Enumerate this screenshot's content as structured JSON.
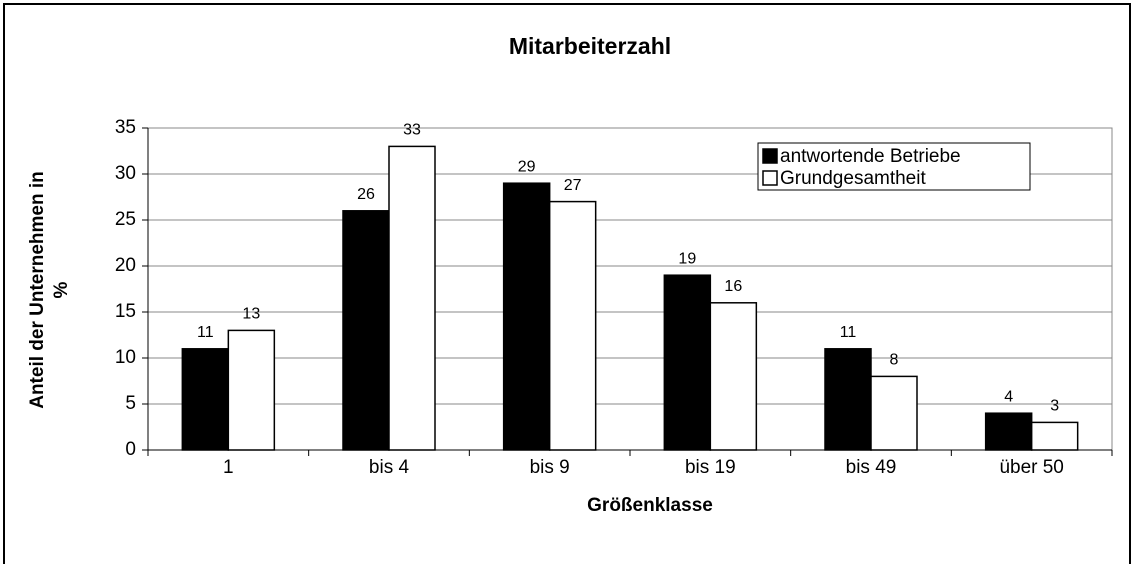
{
  "chart_data": {
    "type": "bar",
    "title": "Mitarbeiterzahl",
    "x_label": "Größenklasse",
    "y_label": [
      "Anteil der Unternehmen in",
      "%"
    ],
    "categories": [
      "1",
      "bis 4",
      "bis 9",
      "bis 19",
      "bis 49",
      "über 50"
    ],
    "series": [
      {
        "name": "antwortende Betriebe",
        "color": "#000000",
        "values": [
          11,
          26,
          29,
          19,
          11,
          4
        ]
      },
      {
        "name": "Grundgesamtheit",
        "color": "#ffffff",
        "values": [
          13,
          33,
          27,
          16,
          8,
          3
        ]
      }
    ],
    "ylim": [
      0,
      35
    ],
    "yticks": [
      0,
      5,
      10,
      15,
      20,
      25,
      30,
      35
    ],
    "grid": true,
    "legend": "top-right"
  }
}
